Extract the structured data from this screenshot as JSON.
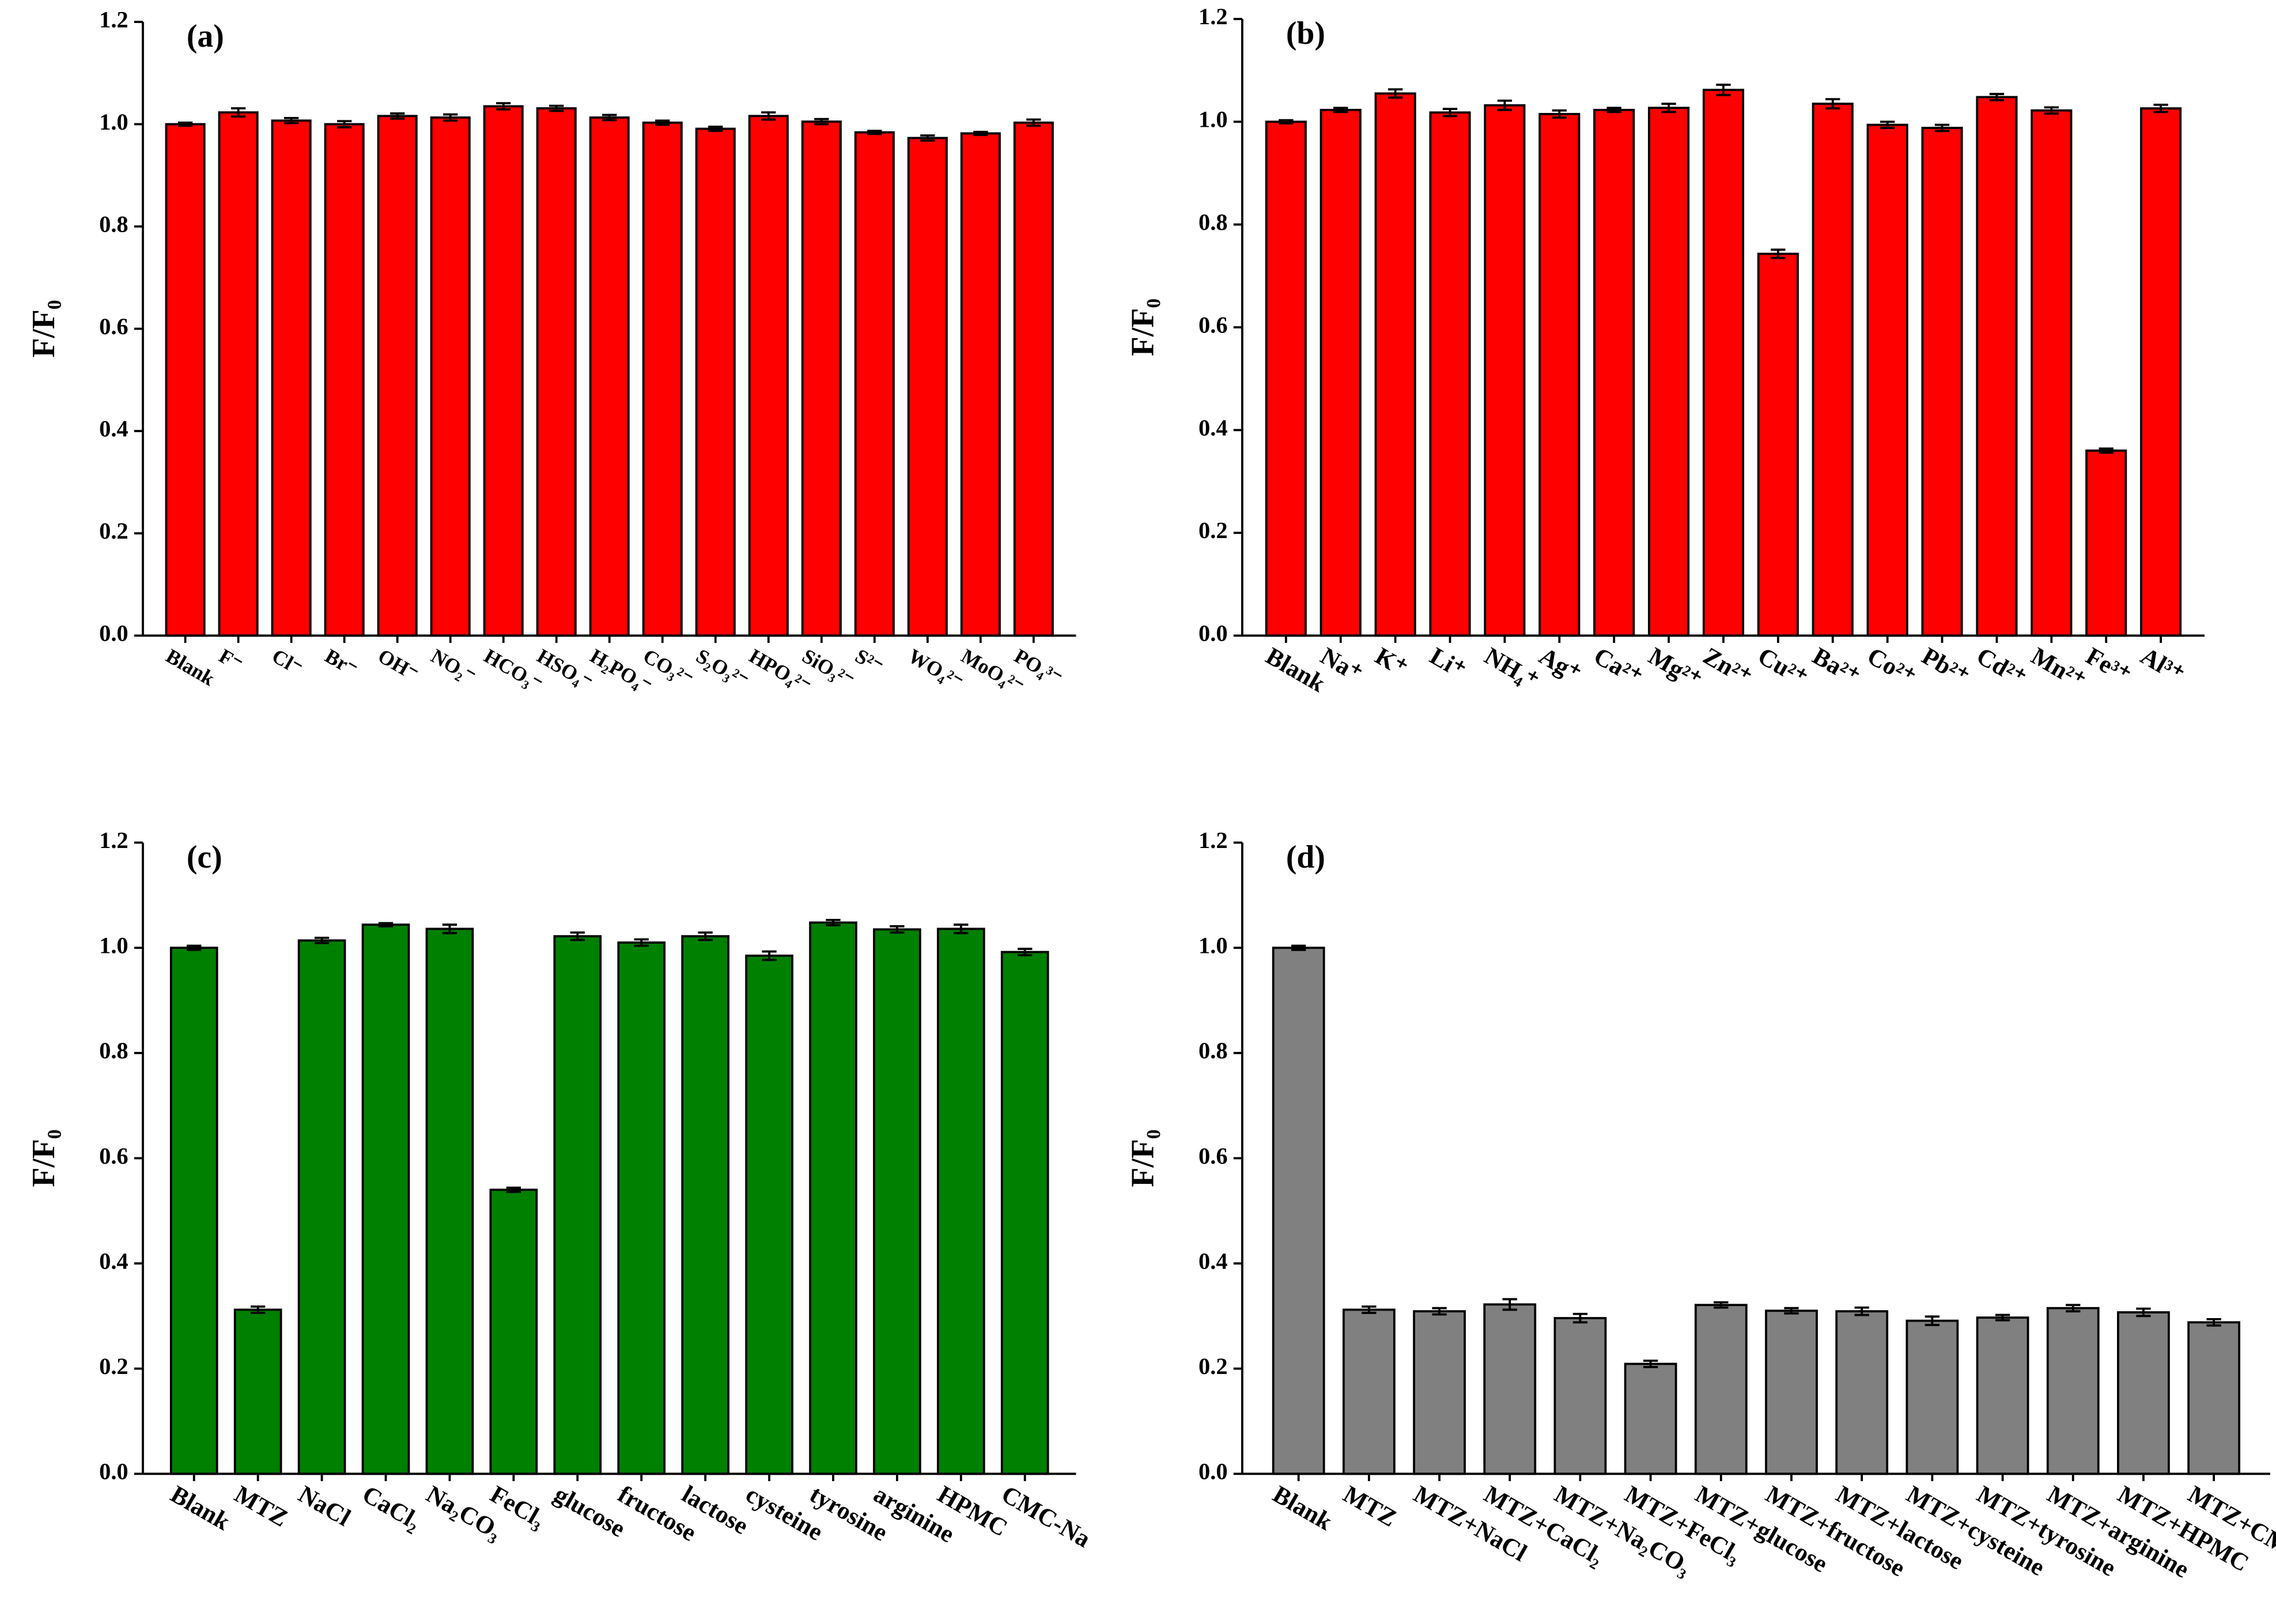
{
  "chart_data": [
    {
      "type": "bar",
      "title": "(a)",
      "ylabel": "F/F₀",
      "color": "#ff0000",
      "categories": [
        "Blank",
        "F⁻",
        "Cl⁻",
        "Br⁻",
        "OH⁻",
        "NO₂⁻",
        "HCO₃⁻",
        "HSO₄⁻",
        "H₂PO₄⁻",
        "CO₃²⁻",
        "S₂O₃²⁻",
        "HPO₄²⁻",
        "SiO₃²⁻",
        "S²⁻",
        "WO₄²⁻",
        "MoO₄²⁻",
        "PO₄³⁻"
      ],
      "values": [
        1.0,
        1.023,
        1.007,
        1.0,
        1.016,
        1.013,
        1.035,
        1.031,
        1.013,
        1.003,
        0.991,
        1.016,
        1.005,
        0.984,
        0.973,
        0.982,
        1.003
      ],
      "errors": [
        0.003,
        0.008,
        0.005,
        0.006,
        0.005,
        0.006,
        0.006,
        0.005,
        0.005,
        0.004,
        0.004,
        0.007,
        0.005,
        0.003,
        0.005,
        0.003,
        0.006
      ],
      "ylim": [
        0,
        1.2
      ],
      "yticks": [
        {
          "value": 0,
          "label": "0.0"
        },
        0.2,
        0.4,
        0.6,
        0.8,
        {
          "value": 1,
          "label": "1.0"
        },
        1.2
      ]
    },
    {
      "type": "bar",
      "title": "(b)",
      "ylabel": "F/F₀",
      "color": "#ff0000",
      "categories": [
        "Blank",
        "Na⁺",
        "K⁺",
        "Li⁺",
        "NH₄⁺",
        "Ag⁺",
        "Ca²⁺",
        "Mg²⁺",
        "Zn²⁺",
        "Cu²⁺",
        "Ba²⁺",
        "Co²⁺",
        "Pb²⁺",
        "Cd²⁺",
        "Mn²⁺",
        "Fe³⁺",
        "Al³⁺"
      ],
      "values": [
        1.0,
        1.023,
        1.055,
        1.018,
        1.032,
        1.015,
        1.023,
        1.027,
        1.062,
        0.743,
        1.035,
        0.994,
        0.988,
        1.048,
        1.022,
        0.36,
        1.026
      ],
      "errors": [
        0.003,
        0.004,
        0.008,
        0.007,
        0.009,
        0.007,
        0.004,
        0.008,
        0.01,
        0.008,
        0.009,
        0.006,
        0.006,
        0.006,
        0.006,
        0.004,
        0.007
      ],
      "ylim": [
        0,
        1.2
      ],
      "yticks": [
        {
          "value": 0,
          "label": "0.0"
        },
        0.2,
        0.4,
        0.6,
        0.8,
        {
          "value": 1,
          "label": "1.0"
        },
        1.2
      ]
    },
    {
      "type": "bar",
      "title": "(c)",
      "ylabel": "F/F₀",
      "color": "#008000",
      "categories": [
        "Blank",
        "MTZ",
        "NaCl",
        "CaCl₂",
        "Na₂CO₃",
        "FeCl₃",
        "glucose",
        "fructose",
        "lactose",
        "cysteine",
        "tyrosine",
        "arginine",
        "HPMC",
        "CMC-Na"
      ],
      "values": [
        1.0,
        0.312,
        1.014,
        1.044,
        1.036,
        0.54,
        1.022,
        1.01,
        1.022,
        0.985,
        1.048,
        1.035,
        1.036,
        0.992
      ],
      "errors": [
        0.004,
        0.006,
        0.005,
        0.003,
        0.008,
        0.004,
        0.007,
        0.006,
        0.007,
        0.008,
        0.005,
        0.006,
        0.008,
        0.006
      ],
      "ylim": [
        0,
        1.2
      ],
      "yticks": [
        {
          "value": 0,
          "label": "0.0"
        },
        0.2,
        0.4,
        0.6,
        0.8,
        {
          "value": 1,
          "label": "1.0"
        },
        1.2
      ]
    },
    {
      "type": "bar",
      "title": "(d)",
      "ylabel": "F/F₀",
      "color": "#808080",
      "categories": [
        "Blank",
        "MTZ",
        "MTZ+NaCl",
        "MTZ+CaCl₂",
        "MTZ+Na₂CO₃",
        "MTZ+FeCl₃",
        "MTZ+glucose",
        "MTZ+fructose",
        "MTZ+lactose",
        "MTZ+cysteine",
        "MTZ+tyrosine",
        "MTZ+arginine",
        "MTZ+HPMC",
        "MTZ+CMC-Na"
      ],
      "values": [
        1.0,
        0.312,
        0.309,
        0.322,
        0.296,
        0.209,
        0.321,
        0.31,
        0.309,
        0.291,
        0.297,
        0.315,
        0.307,
        0.288
      ],
      "errors": [
        0.004,
        0.006,
        0.006,
        0.01,
        0.008,
        0.006,
        0.005,
        0.005,
        0.007,
        0.008,
        0.005,
        0.006,
        0.007,
        0.006
      ],
      "ylim": [
        0,
        1.2
      ],
      "yticks": [
        {
          "value": 0,
          "label": "0.0"
        },
        0.2,
        0.4,
        0.6,
        0.8,
        {
          "value": 1,
          "label": "1.0"
        },
        1.2
      ]
    }
  ]
}
